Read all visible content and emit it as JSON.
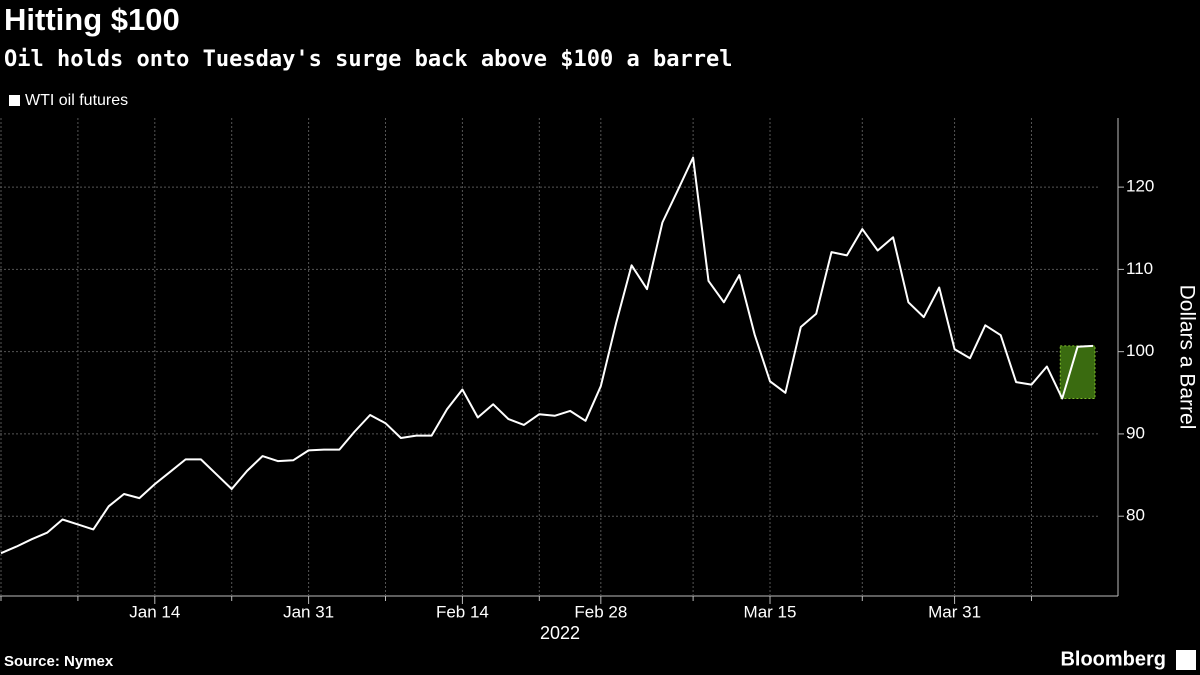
{
  "chart_data": {
    "type": "line",
    "title": "Hitting $100",
    "subtitle": "Oil holds onto Tuesday's surge back above $100 a barrel",
    "ylabel": "Dollars a Barrel",
    "xlabel": "2022",
    "source": "Source: Nymex",
    "brand": "Bloomberg",
    "categories": [
      null,
      null,
      null,
      null,
      null,
      null,
      null,
      null,
      null,
      null,
      "Jan 14",
      null,
      null,
      null,
      null,
      null,
      null,
      null,
      null,
      null,
      "Jan 31",
      null,
      null,
      null,
      null,
      null,
      null,
      null,
      null,
      null,
      "Feb 14",
      null,
      null,
      null,
      null,
      null,
      null,
      null,
      null,
      "Feb 28",
      null,
      null,
      null,
      null,
      null,
      null,
      null,
      null,
      null,
      null,
      "Mar 15",
      null,
      null,
      null,
      null,
      null,
      null,
      null,
      null,
      null,
      null,
      null,
      "Mar 31",
      null,
      null,
      null,
      null,
      null,
      null,
      null,
      null,
      null
    ],
    "series": [
      {
        "name": "WTI oil futures",
        "color": "#ffffff",
        "values": [
          75.5,
          76.3,
          77.2,
          78.0,
          79.6,
          79.0,
          78.4,
          81.2,
          82.7,
          82.2,
          83.9,
          85.4,
          86.9,
          86.9,
          85.1,
          83.3,
          85.5,
          87.3,
          86.7,
          86.8,
          88.0,
          88.1,
          88.1,
          90.3,
          92.3,
          91.3,
          89.5,
          89.8,
          89.8,
          93.0,
          95.4,
          92.0,
          93.6,
          91.8,
          91.1,
          92.4,
          92.2,
          92.8,
          91.6,
          95.8,
          103.5,
          110.5,
          107.6,
          115.7,
          119.6,
          123.6,
          108.6,
          106.0,
          109.3,
          102.1,
          96.4,
          95.0,
          103.0,
          104.6,
          112.1,
          111.7,
          114.9,
          112.3,
          113.9,
          106.0,
          104.2,
          107.8,
          100.3,
          99.2,
          103.2,
          102.0,
          96.3,
          96.0,
          98.2,
          94.3,
          100.6,
          100.7
        ]
      }
    ],
    "ylim": [
      70.3,
      128.4
    ],
    "yticks": [
      80,
      90,
      100,
      110,
      120
    ],
    "grid": true,
    "highlight_color": "#3a6b10"
  }
}
